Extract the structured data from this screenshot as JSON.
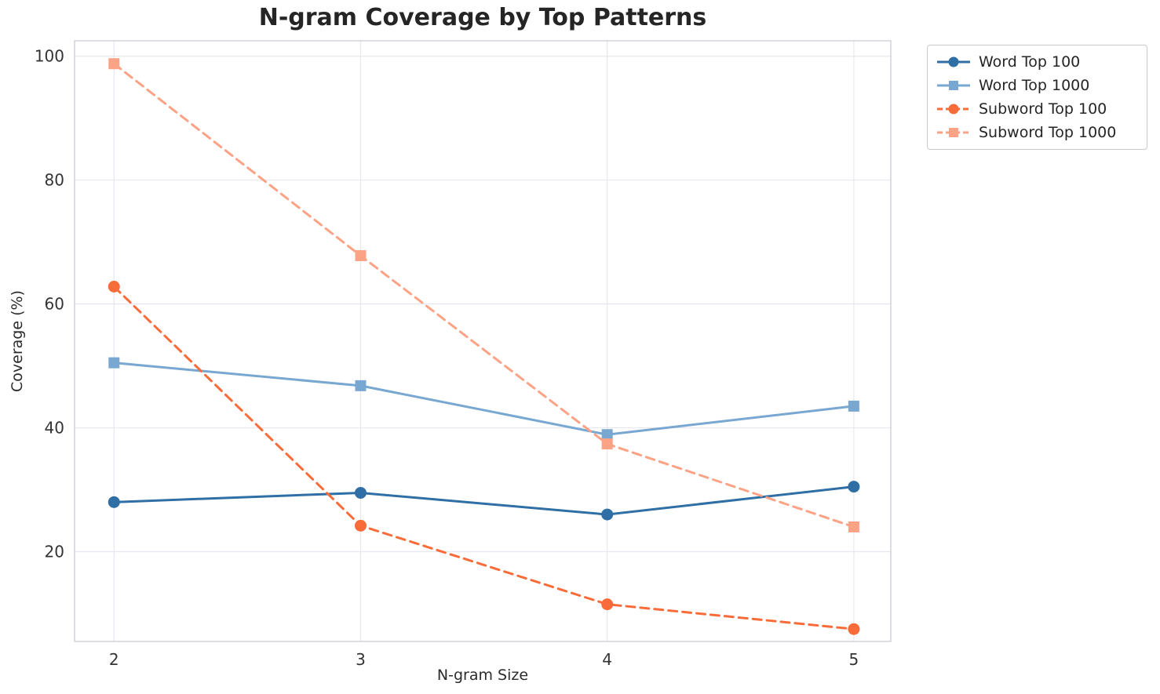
{
  "chart_data": {
    "type": "line",
    "title": "N-gram Coverage by Top Patterns",
    "xlabel": "N-gram Size",
    "ylabel": "Coverage (%)",
    "x": [
      2,
      3,
      4,
      5
    ],
    "xtick_labels": [
      "2",
      "3",
      "4",
      "5"
    ],
    "yticks": [
      20,
      40,
      60,
      80,
      100
    ],
    "ytick_labels": [
      "20",
      "40",
      "60",
      "80",
      "100"
    ],
    "xlim": [
      1.84,
      5.15
    ],
    "ylim": [
      5.5,
      102.5
    ],
    "grid": true,
    "legend_position": "outside-upper-right",
    "series": [
      {
        "name": "Word Top 100",
        "values": [
          28.0,
          29.5,
          26.0,
          30.5
        ],
        "color": "#2f6fa5",
        "line_style": "solid",
        "marker": "circle"
      },
      {
        "name": "Word Top 1000",
        "values": [
          50.5,
          46.8,
          38.9,
          43.5
        ],
        "color": "#78a8d1",
        "line_style": "solid",
        "marker": "square"
      },
      {
        "name": "Subword Top 100",
        "values": [
          62.8,
          24.2,
          11.5,
          7.5
        ],
        "color": "#f96c39",
        "line_style": "dashed",
        "marker": "circle"
      },
      {
        "name": "Subword Top 1000",
        "values": [
          98.8,
          67.8,
          37.4,
          24.0
        ],
        "color": "#fca285",
        "line_style": "dashed",
        "marker": "square"
      }
    ]
  },
  "colors": {
    "background": "#ffffff",
    "grid": "#e7e7ef",
    "spine": "#cbcbd2",
    "title_text": "#252525",
    "tick_text": "#333333",
    "legend_border": "#c9c9c9"
  }
}
